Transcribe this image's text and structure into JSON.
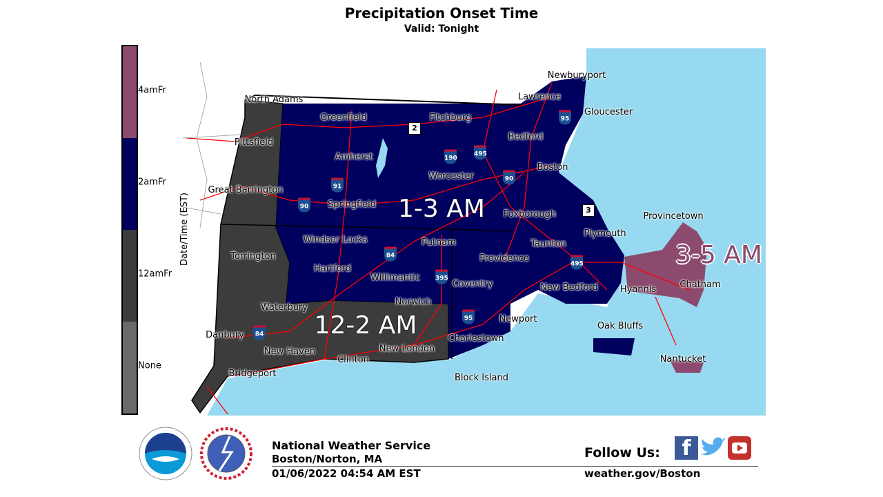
{
  "title": "Precipitation Onset Time",
  "subtitle": "Valid: Tonight",
  "colorbar": {
    "label": "Date/Time (EST)",
    "ticks": [
      "4amFr",
      "2amFr",
      "12amFr",
      "None"
    ],
    "colors": [
      "#8b4a6e",
      "#00005f",
      "#3c3c3c",
      "#6a6a6a"
    ]
  },
  "colors": {
    "ocean": "#97d9f0",
    "roads": "#ff0000"
  },
  "zones": [
    "1-3 AM",
    "12-2 AM",
    "3-5 AM"
  ],
  "cities": [
    "North Adams",
    "Greenfield",
    "Fitchburg",
    "Lawrence",
    "Newburyport",
    "Gloucester",
    "Pittsfield",
    "Bedford",
    "Amherst",
    "Worcester",
    "Boston",
    "Great Barrington",
    "Springfield",
    "Foxborough",
    "Provincetown",
    "Plymouth",
    "Windsor Locks",
    "Putnam",
    "Taunton",
    "Torrington",
    "Providence",
    "Hartford",
    "Willimantic",
    "Coventry",
    "New Bedford",
    "Hyannis",
    "Chatham",
    "Waterbury",
    "Norwich",
    "Newport",
    "Oak Bluffs",
    "Danbury",
    "New Haven",
    "Clinton",
    "New London",
    "Charlestown",
    "Nantucket",
    "Bridgeport",
    "Block Island"
  ],
  "interstates": [
    "95",
    "190",
    "495",
    "90",
    "91",
    "90",
    "84",
    "395",
    "495",
    "95",
    "84"
  ],
  "routes": [
    "2",
    "3"
  ],
  "footer": {
    "org": "National Weather Service",
    "office": "Boston/Norton, MA",
    "timestamp": "01/06/2022 04:54 AM EST",
    "follow": "Follow Us:",
    "website": "weather.gov/Boston",
    "logos": [
      "NOAA",
      "NATIONAL WEATHER SERVICE"
    ],
    "social": [
      "facebook-icon",
      "twitter-icon",
      "youtube-icon"
    ]
  }
}
